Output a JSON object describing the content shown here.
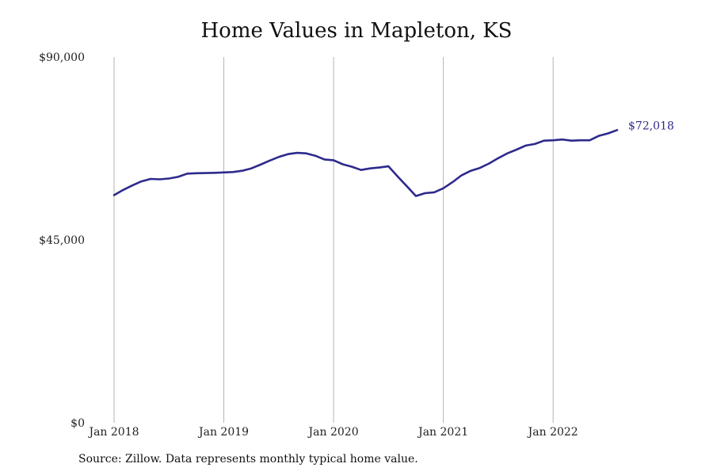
{
  "chart_data": {
    "type": "line",
    "title": "Home Values in Mapleton, KS",
    "source": "Source: Zillow. Data represents monthly typical home value.",
    "ylim": [
      0,
      90000
    ],
    "y_ticks": [
      "$0",
      "$45,000",
      "$90,000"
    ],
    "x_ticks": [
      "Jan 2018",
      "Jan 2019",
      "Jan 2020",
      "Jan 2021",
      "Jan 2022"
    ],
    "end_label": "$72,018",
    "grid": "vertical",
    "line_color": "#2e2a8c",
    "series": [
      {
        "x": [
          "2018-01",
          "2018-02",
          "2018-03",
          "2018-04",
          "2018-05",
          "2018-06",
          "2018-07",
          "2018-08",
          "2018-09",
          "2018-10",
          "2018-11",
          "2018-12",
          "2019-01",
          "2019-02",
          "2019-03",
          "2019-04",
          "2019-05",
          "2019-06",
          "2019-07",
          "2019-08",
          "2019-09",
          "2019-10",
          "2019-11",
          "2019-12",
          "2020-01",
          "2020-02",
          "2020-03",
          "2020-04",
          "2020-05",
          "2020-06",
          "2020-07",
          "2020-08",
          "2020-09",
          "2020-10",
          "2020-11",
          "2020-12",
          "2021-01",
          "2021-02",
          "2021-03",
          "2021-04",
          "2021-05",
          "2021-06",
          "2021-07",
          "2021-08",
          "2021-09",
          "2021-10",
          "2021-11",
          "2021-12",
          "2022-01",
          "2022-02",
          "2022-03",
          "2022-04",
          "2022-05",
          "2022-06",
          "2022-07",
          "2022-08"
        ],
        "values": [
          56000,
          57300,
          58400,
          59400,
          60000,
          59900,
          60100,
          60500,
          61300,
          61400,
          61450,
          61500,
          61600,
          61700,
          62000,
          62600,
          63500,
          64500,
          65400,
          66100,
          66400,
          66300,
          65700,
          64800,
          64600,
          63600,
          63000,
          62200,
          62600,
          62800,
          63100,
          60600,
          58200,
          55800,
          56500,
          56700,
          57700,
          59200,
          60900,
          62000,
          62700,
          63800,
          65100,
          66300,
          67200,
          68200,
          68600,
          69400,
          69500,
          69700,
          69400,
          69500,
          69500,
          70600,
          71200,
          72018
        ]
      }
    ]
  }
}
